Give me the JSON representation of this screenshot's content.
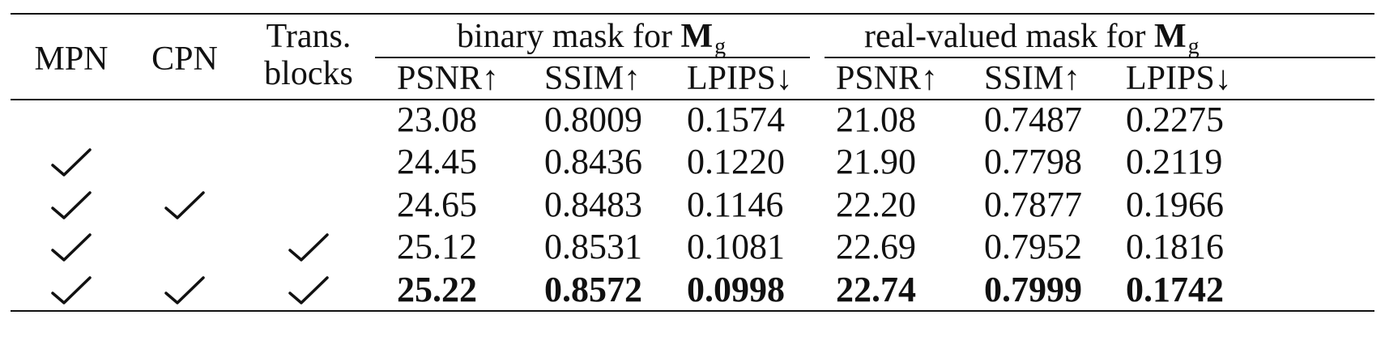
{
  "table": {
    "headers": {
      "mpn": "MPN",
      "cpn": "CPN",
      "trans_line1": "Trans.",
      "trans_line2": "blocks",
      "group1_prefix": "binary mask for",
      "group2_prefix": "real-valued mask for",
      "mask_symbol_main": "M",
      "mask_symbol_sub": "g",
      "metrics": [
        "PSNR↑",
        "SSIM↑",
        "LPIPS↓",
        "PSNR↑",
        "SSIM↑",
        "LPIPS↓"
      ]
    },
    "rows": [
      {
        "mpn": false,
        "cpn": false,
        "trans": false,
        "values": [
          "23.08",
          "0.8009",
          "0.1574",
          "21.08",
          "0.7487",
          "0.2275"
        ],
        "bold": false
      },
      {
        "mpn": true,
        "cpn": false,
        "trans": false,
        "values": [
          "24.45",
          "0.8436",
          "0.1220",
          "21.90",
          "0.7798",
          "0.2119"
        ],
        "bold": false
      },
      {
        "mpn": true,
        "cpn": true,
        "trans": false,
        "values": [
          "24.65",
          "0.8483",
          "0.1146",
          "22.20",
          "0.7877",
          "0.1966"
        ],
        "bold": false
      },
      {
        "mpn": true,
        "cpn": false,
        "trans": true,
        "values": [
          "25.12",
          "0.8531",
          "0.1081",
          "22.69",
          "0.7952",
          "0.1816"
        ],
        "bold": false
      },
      {
        "mpn": true,
        "cpn": true,
        "trans": true,
        "values": [
          "25.22",
          "0.8572",
          "0.0998",
          "22.74",
          "0.7999",
          "0.1742"
        ],
        "bold": true
      }
    ]
  }
}
